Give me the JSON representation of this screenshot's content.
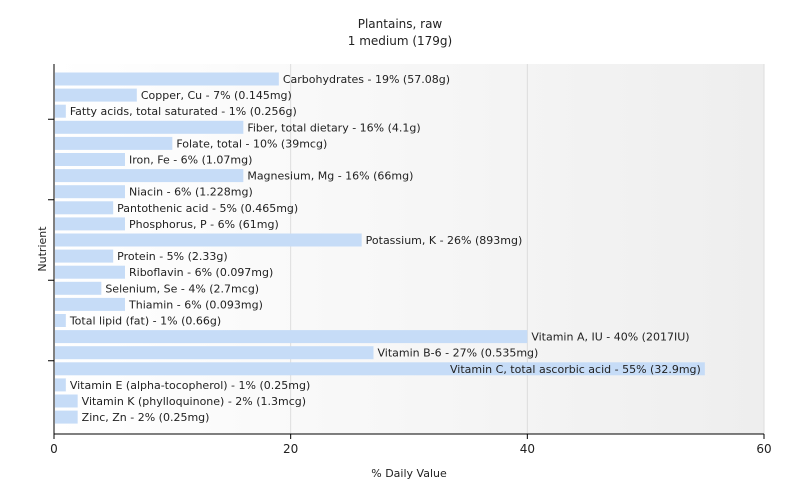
{
  "chart_data": {
    "type": "bar",
    "orientation": "horizontal",
    "title": "Plantains, raw",
    "subtitle": "1 medium (179g)",
    "xlabel": "% Daily Value",
    "ylabel": "Nutrient",
    "xlim": [
      0,
      60
    ],
    "xticks": [
      0,
      20,
      40,
      60
    ],
    "grid": true,
    "bar_color": "#c6dcf7",
    "categories": [
      "Carbohydrates",
      "Copper, Cu",
      "Fatty acids, total saturated",
      "Fiber, total dietary",
      "Folate, total",
      "Iron, Fe",
      "Magnesium, Mg",
      "Niacin",
      "Pantothenic acid",
      "Phosphorus, P",
      "Potassium, K",
      "Protein",
      "Riboflavin",
      "Selenium, Se",
      "Thiamin",
      "Total lipid (fat)",
      "Vitamin A, IU",
      "Vitamin B-6",
      "Vitamin C, total ascorbic acid",
      "Vitamin E (alpha-tocopherol)",
      "Vitamin K (phylloquinone)",
      "Zinc, Zn"
    ],
    "values": [
      19,
      7,
      1,
      16,
      10,
      6,
      16,
      6,
      5,
      6,
      26,
      5,
      6,
      4,
      6,
      1,
      40,
      27,
      55,
      1,
      2,
      2
    ],
    "labels": [
      "Carbohydrates - 19% (57.08g)",
      "Copper, Cu - 7% (0.145mg)",
      "Fatty acids, total saturated - 1% (0.256g)",
      "Fiber, total dietary - 16% (4.1g)",
      "Folate, total - 10% (39mcg)",
      "Iron, Fe - 6% (1.07mg)",
      "Magnesium, Mg - 16% (66mg)",
      "Niacin - 6% (1.228mg)",
      "Pantothenic acid - 5% (0.465mg)",
      "Phosphorus, P - 6% (61mg)",
      "Potassium, K - 26% (893mg)",
      "Protein - 5% (2.33g)",
      "Riboflavin - 6% (0.097mg)",
      "Selenium, Se - 4% (2.7mcg)",
      "Thiamin - 6% (0.093mg)",
      "Total lipid (fat) - 1% (0.66g)",
      "Vitamin A, IU - 40% (2017IU)",
      "Vitamin B-6 - 27% (0.535mg)",
      "Vitamin C, total ascorbic acid - 55% (32.9mg)",
      "Vitamin E (alpha-tocopherol) - 1% (0.25mg)",
      "Vitamin K (phylloquinone) - 2% (1.3mcg)",
      "Zinc, Zn - 2% (0.25mg)"
    ]
  }
}
